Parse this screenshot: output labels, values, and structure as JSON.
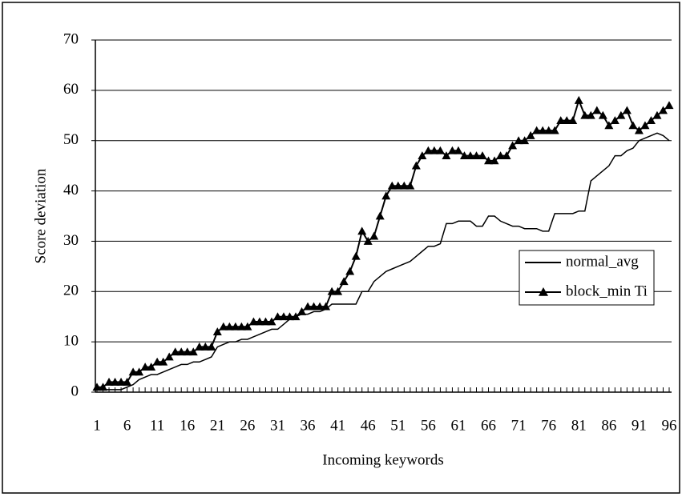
{
  "chart_data": {
    "type": "line",
    "xlabel": "Incoming keywords",
    "ylabel": "Score deviation",
    "x": [
      1,
      2,
      3,
      4,
      5,
      6,
      7,
      8,
      9,
      10,
      11,
      12,
      13,
      14,
      15,
      16,
      17,
      18,
      19,
      20,
      21,
      22,
      23,
      24,
      25,
      26,
      27,
      28,
      29,
      30,
      31,
      32,
      33,
      34,
      35,
      36,
      37,
      38,
      39,
      40,
      41,
      42,
      43,
      44,
      45,
      46,
      47,
      48,
      49,
      50,
      51,
      52,
      53,
      54,
      55,
      56,
      57,
      58,
      59,
      60,
      61,
      62,
      63,
      64,
      65,
      66,
      67,
      68,
      69,
      70,
      71,
      72,
      73,
      74,
      75,
      76,
      77,
      78,
      79,
      80,
      81,
      82,
      83,
      84,
      85,
      86,
      87,
      88,
      89,
      90,
      91,
      92,
      93,
      94,
      95,
      96
    ],
    "xlim": [
      1,
      96
    ],
    "xticks": [
      1,
      6,
      11,
      16,
      21,
      26,
      31,
      36,
      41,
      46,
      51,
      56,
      61,
      66,
      71,
      76,
      81,
      86,
      91,
      96
    ],
    "ylim": [
      0,
      70
    ],
    "yticks": [
      0,
      10,
      20,
      30,
      40,
      50,
      60,
      70
    ],
    "grid": true,
    "legend": "right",
    "series": [
      {
        "name": "normal_avg",
        "color": "#000000",
        "marker": "none",
        "values": [
          0.5,
          0.5,
          0.5,
          0.5,
          0.5,
          1,
          1.5,
          2.5,
          3,
          3.5,
          3.5,
          4,
          4.5,
          5,
          5.5,
          5.5,
          6,
          6,
          6.5,
          7,
          9,
          9.5,
          10,
          10,
          10.5,
          10.5,
          11,
          11.5,
          12,
          12.5,
          12.5,
          13.5,
          14.5,
          15,
          15.5,
          15.5,
          16,
          16,
          16.5,
          17.5,
          17.5,
          17.5,
          17.5,
          17.5,
          20,
          20,
          22,
          23,
          24,
          24.5,
          25,
          25.5,
          26,
          27,
          28,
          29,
          29,
          29.5,
          33.5,
          33.5,
          34,
          34,
          34,
          33,
          33,
          35,
          35,
          34,
          33.5,
          33,
          33,
          32.5,
          32.5,
          32.5,
          32,
          32,
          35.5,
          35.5,
          35.5,
          35.5,
          36,
          36,
          42,
          43,
          44,
          45,
          47,
          47,
          48,
          48.5,
          50,
          50.5,
          51,
          51.5,
          51,
          50
        ]
      },
      {
        "name": "block_min Ti",
        "color": "#000000",
        "marker": "triangle",
        "values": [
          1,
          1,
          2,
          2,
          2,
          2,
          4,
          4,
          5,
          5,
          6,
          6,
          7,
          8,
          8,
          8,
          8,
          9,
          9,
          9,
          12,
          13,
          13,
          13,
          13,
          13,
          14,
          14,
          14,
          14,
          15,
          15,
          15,
          15,
          16,
          17,
          17,
          17,
          17,
          20,
          20,
          22,
          24,
          27,
          32,
          30,
          31,
          35,
          39,
          41,
          41,
          41,
          41,
          45,
          47,
          48,
          48,
          48,
          47,
          48,
          48,
          47,
          47,
          47,
          47,
          46,
          46,
          47,
          47,
          49,
          50,
          50,
          51,
          52,
          52,
          52,
          52,
          54,
          54,
          54,
          58,
          55,
          55,
          56,
          55,
          53,
          54,
          55,
          56,
          53,
          52,
          53,
          54,
          55,
          56,
          57
        ]
      }
    ]
  }
}
